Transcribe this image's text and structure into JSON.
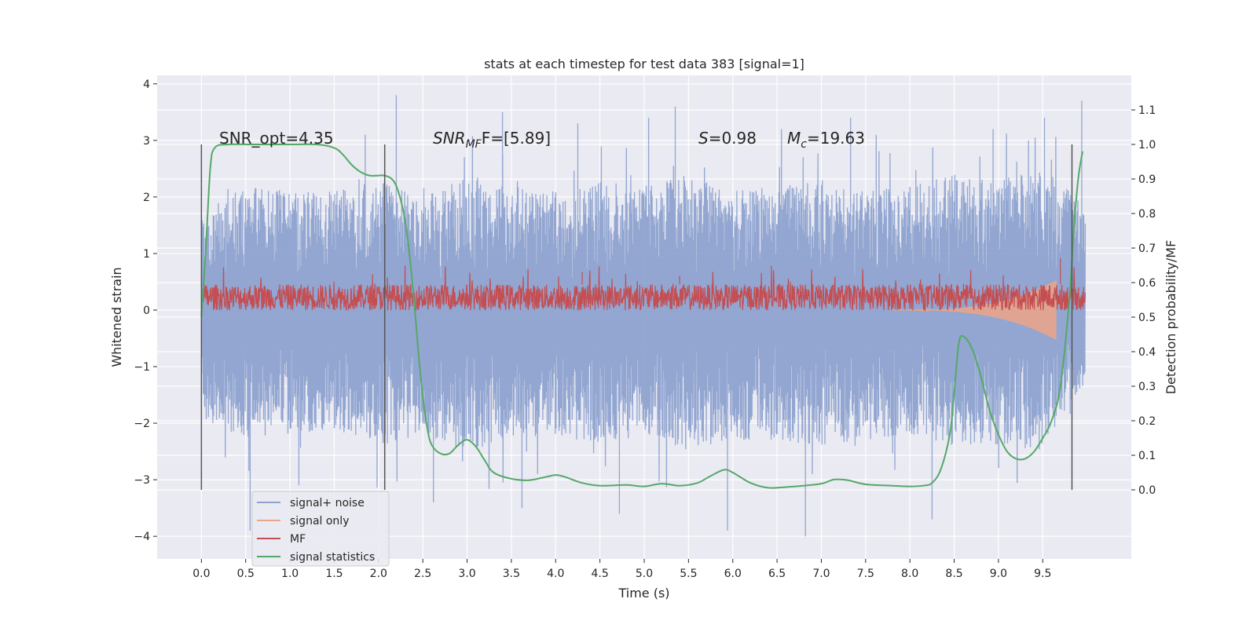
{
  "chart_data": {
    "type": "line",
    "title": "stats at each timestep for test data 383 [signal=1]",
    "xlabel": "Time (s)",
    "ylabel_left": "Whitened strain",
    "ylabel_right": "Detection probability/MF",
    "xlim": [
      -0.5,
      10.5
    ],
    "ylim_left": [
      -4.4,
      4.15
    ],
    "ylim_right": [
      -0.2,
      1.2
    ],
    "x_ticks": [
      "0.0",
      "0.5",
      "1.0",
      "1.5",
      "2.0",
      "2.5",
      "3.0",
      "3.5",
      "4.0",
      "4.5",
      "5.0",
      "5.5",
      "6.0",
      "6.5",
      "7.0",
      "7.5",
      "8.0",
      "8.5",
      "9.0",
      "9.5"
    ],
    "y_left_ticks": [
      "4",
      "3",
      "2",
      "1",
      "0",
      "−1",
      "−2",
      "−3",
      "−4"
    ],
    "y_right_ticks": [
      "1.1",
      "1.0",
      "0.9",
      "0.8",
      "0.7",
      "0.6",
      "0.5",
      "0.4",
      "0.3",
      "0.2",
      "0.1",
      "0.0"
    ],
    "grid": true,
    "legend_placement": "lower-left",
    "annotations": {
      "snr_opt": "SNR_opt=4.35",
      "snr_mf_base": "SNR",
      "snr_mf_sub": "MF",
      "snr_mf_rest": "F=[5.89]",
      "s_sym": "S",
      "s_rest": "=0.98",
      "mc_sym": "M",
      "mc_sub": "c",
      "mc_rest": "=19.63"
    },
    "vertical_markers_x": [
      0.0,
      2.07,
      9.83
    ],
    "series": [
      {
        "name": "signal+ noise",
        "color": "#8da2cf",
        "envelope": {
          "x": [
            0.0,
            0.5,
            1.0,
            1.5,
            2.0,
            2.5,
            3.0,
            3.5,
            4.0,
            4.5,
            5.0,
            5.5,
            6.0,
            6.5,
            7.0,
            7.5,
            8.0,
            8.5,
            9.0,
            9.5,
            9.98
          ],
          "typical_upper": [
            1.7,
            2.2,
            2.1,
            2.1,
            2.3,
            2.0,
            2.4,
            2.2,
            2.1,
            2.3,
            2.2,
            2.4,
            2.1,
            2.2,
            2.3,
            2.1,
            2.2,
            2.4,
            2.3,
            2.5,
            1.9
          ],
          "typical_lower": [
            -1.9,
            -2.3,
            -2.2,
            -2.1,
            -2.4,
            -2.2,
            -2.5,
            -2.3,
            -2.2,
            -2.4,
            -2.2,
            -2.5,
            -2.3,
            -2.3,
            -2.4,
            -2.3,
            -2.2,
            -2.4,
            -2.4,
            -2.5,
            -1.3
          ]
        },
        "extremes": {
          "x": [
            0.55,
            1.1,
            1.85,
            2.2,
            2.62,
            3.4,
            3.62,
            4.25,
            4.72,
            5.05,
            5.35,
            5.94,
            6.55,
            6.82,
            7.33,
            7.62,
            8.25,
            8.94,
            9.34,
            9.52,
            9.94
          ],
          "y": [
            -3.9,
            -3.1,
            3.1,
            3.8,
            -3.4,
            3.5,
            -3.5,
            3.3,
            -3.6,
            3.4,
            3.6,
            -3.9,
            3.2,
            -4.0,
            3.4,
            3.1,
            -3.7,
            3.2,
            3.0,
            3.4,
            3.7
          ]
        }
      },
      {
        "name": "signal only",
        "color": "#e8a58b",
        "chirp": {
          "start": 7.8,
          "end": 9.65,
          "peak_amplitude": 0.75
        }
      },
      {
        "name": "MF",
        "color": "#c44e52",
        "band": {
          "lower": 0.52,
          "upper": 0.595,
          "spike_max": 0.65
        },
        "peaks": {
          "x": [
            4.3,
            5.4,
            9.7
          ],
          "y": [
            0.63,
            0.62,
            0.67
          ]
        }
      },
      {
        "name": "signal statistics",
        "color": "#55a868",
        "x": [
          0.0,
          0.05,
          0.1,
          0.15,
          0.3,
          0.6,
          1.0,
          1.3,
          1.5,
          1.6,
          1.7,
          1.8,
          1.9,
          2.0,
          2.07,
          2.15,
          2.2,
          2.25,
          2.3,
          2.35,
          2.4,
          2.45,
          2.5,
          2.55,
          2.6,
          2.7,
          2.8,
          2.9,
          3.0,
          3.1,
          3.2,
          3.3,
          3.5,
          3.7,
          3.9,
          4.0,
          4.1,
          4.3,
          4.5,
          4.8,
          5.0,
          5.2,
          5.4,
          5.6,
          5.75,
          5.9,
          6.0,
          6.2,
          6.4,
          6.6,
          6.8,
          7.0,
          7.15,
          7.3,
          7.5,
          7.8,
          8.0,
          8.15,
          8.25,
          8.35,
          8.45,
          8.5,
          8.55,
          8.6,
          8.7,
          8.8,
          8.9,
          9.0,
          9.1,
          9.2,
          9.3,
          9.4,
          9.5,
          9.6,
          9.7,
          9.8,
          9.85,
          9.9,
          9.95
        ],
        "y": [
          0.5,
          0.7,
          0.93,
          0.99,
          1.0,
          1.0,
          1.0,
          1.0,
          0.99,
          0.97,
          0.94,
          0.92,
          0.91,
          0.91,
          0.91,
          0.9,
          0.88,
          0.84,
          0.78,
          0.68,
          0.55,
          0.4,
          0.27,
          0.18,
          0.13,
          0.105,
          0.105,
          0.13,
          0.145,
          0.125,
          0.085,
          0.05,
          0.032,
          0.028,
          0.038,
          0.043,
          0.038,
          0.02,
          0.012,
          0.014,
          0.01,
          0.018,
          0.012,
          0.02,
          0.04,
          0.058,
          0.05,
          0.02,
          0.006,
          0.008,
          0.012,
          0.018,
          0.03,
          0.028,
          0.016,
          0.012,
          0.01,
          0.012,
          0.02,
          0.06,
          0.16,
          0.28,
          0.42,
          0.445,
          0.41,
          0.33,
          0.23,
          0.16,
          0.11,
          0.09,
          0.09,
          0.11,
          0.15,
          0.2,
          0.3,
          0.55,
          0.75,
          0.9,
          0.98
        ]
      }
    ]
  }
}
